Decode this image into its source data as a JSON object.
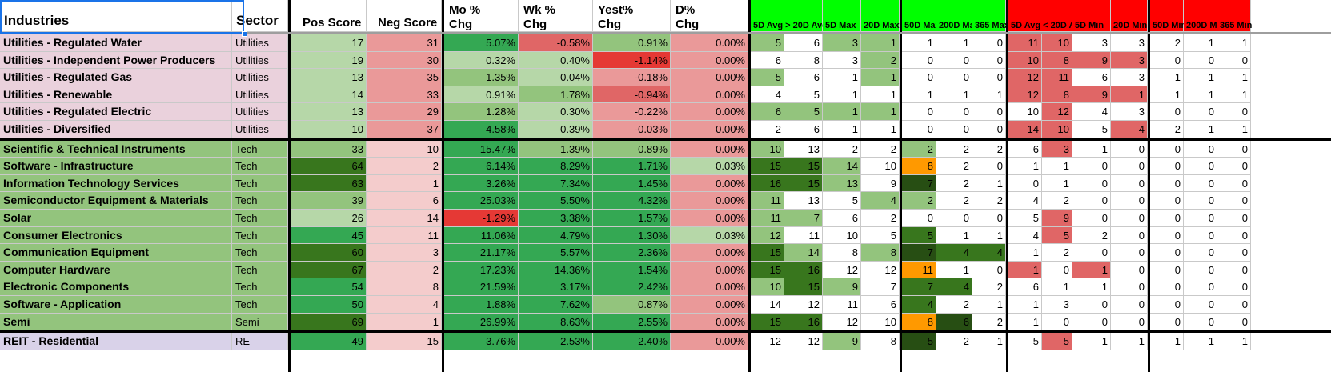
{
  "header": {
    "industries": "Industries",
    "sector": "Sector",
    "pos_score": "Pos Score",
    "neg_score": "Neg Score",
    "mo_chg": [
      "Mo %",
      "Chg"
    ],
    "wk_chg": [
      "Wk %",
      "Chg"
    ],
    "yest_chg": [
      "Yest%",
      "Chg"
    ],
    "d_chg": [
      "D%",
      "Chg"
    ],
    "c5_gt_20": "5D Avg > 20D Avg",
    "c5max": "5D Max",
    "c20max": "20D Max",
    "c50max": "50D Max",
    "c200max": "200D Ma",
    "c365max": "365 Max",
    "c5_lt_20": "5D Avg < 20D Av",
    "c5min": "5D Min",
    "c20min": "20D Min",
    "c50min": "50D Min",
    "c200min": "200D Mi",
    "c365min": "365 Min"
  },
  "colors": {
    "util_row": "#ead1dc",
    "tech_row": "#93c47d",
    "reit_row": "#d9d2e9",
    "max_header": "#00ff00",
    "min_header": "#ff0000",
    "orange": "#ff9900"
  },
  "rows": [
    {
      "industry": "Utilities - Regulated Water",
      "sector": "Utilities",
      "pos": "17",
      "neg": "31",
      "mo": "5.07%",
      "wk": "-0.58%",
      "yest": "0.91%",
      "d": "0.00%",
      "g": [
        "5",
        "6",
        "3",
        "1",
        "1",
        "1",
        "0"
      ],
      "r": [
        "11",
        "10",
        "3",
        "3",
        "2",
        "1",
        "1"
      ]
    },
    {
      "industry": "Utilities - Independent Power Producers",
      "sector": "Utilities",
      "pos": "19",
      "neg": "30",
      "mo": "0.32%",
      "wk": "0.40%",
      "yest": "-1.14%",
      "d": "0.00%",
      "g": [
        "6",
        "8",
        "3",
        "2",
        "0",
        "0",
        "0"
      ],
      "r": [
        "10",
        "8",
        "9",
        "3",
        "0",
        "0",
        "0"
      ]
    },
    {
      "industry": "Utilities - Regulated Gas",
      "sector": "Utilities",
      "pos": "13",
      "neg": "35",
      "mo": "1.35%",
      "wk": "0.04%",
      "yest": "-0.18%",
      "d": "0.00%",
      "g": [
        "5",
        "6",
        "1",
        "1",
        "0",
        "0",
        "0"
      ],
      "r": [
        "12",
        "11",
        "6",
        "3",
        "1",
        "1",
        "1"
      ]
    },
    {
      "industry": "Utilities - Renewable",
      "sector": "Utilities",
      "pos": "14",
      "neg": "33",
      "mo": "0.91%",
      "wk": "1.78%",
      "yest": "-0.94%",
      "d": "0.00%",
      "g": [
        "4",
        "5",
        "1",
        "1",
        "1",
        "1",
        "1"
      ],
      "r": [
        "12",
        "8",
        "9",
        "1",
        "1",
        "1",
        "1"
      ]
    },
    {
      "industry": "Utilities - Regulated Electric",
      "sector": "Utilities",
      "pos": "13",
      "neg": "29",
      "mo": "1.28%",
      "wk": "0.30%",
      "yest": "-0.22%",
      "d": "0.00%",
      "g": [
        "6",
        "5",
        "1",
        "1",
        "0",
        "0",
        "0"
      ],
      "r": [
        "10",
        "12",
        "4",
        "3",
        "0",
        "0",
        "0"
      ]
    },
    {
      "industry": "Utilities - Diversified",
      "sector": "Utilities",
      "pos": "10",
      "neg": "37",
      "mo": "4.58%",
      "wk": "0.39%",
      "yest": "-0.03%",
      "d": "0.00%",
      "g": [
        "2",
        "6",
        "1",
        "1",
        "0",
        "0",
        "0"
      ],
      "r": [
        "14",
        "10",
        "5",
        "4",
        "2",
        "1",
        "1"
      ]
    },
    {
      "industry": "Scientific & Technical Instruments",
      "sector": "Tech",
      "pos": "33",
      "neg": "10",
      "mo": "15.47%",
      "wk": "1.39%",
      "yest": "0.89%",
      "d": "0.00%",
      "g": [
        "10",
        "13",
        "2",
        "2",
        "2",
        "2",
        "2"
      ],
      "r": [
        "6",
        "3",
        "1",
        "0",
        "0",
        "0",
        "0"
      ]
    },
    {
      "industry": "Software - Infrastructure",
      "sector": "Tech",
      "pos": "64",
      "neg": "2",
      "mo": "6.14%",
      "wk": "8.29%",
      "yest": "1.71%",
      "d": "0.03%",
      "g": [
        "15",
        "15",
        "14",
        "10",
        "8",
        "2",
        "0"
      ],
      "r": [
        "1",
        "1",
        "0",
        "0",
        "0",
        "0",
        "0"
      ]
    },
    {
      "industry": "Information Technology Services",
      "sector": "Tech",
      "pos": "63",
      "neg": "1",
      "mo": "3.26%",
      "wk": "7.34%",
      "yest": "1.45%",
      "d": "0.00%",
      "g": [
        "16",
        "15",
        "13",
        "9",
        "7",
        "2",
        "1"
      ],
      "r": [
        "0",
        "1",
        "0",
        "0",
        "0",
        "0",
        "0"
      ]
    },
    {
      "industry": "Semiconductor Equipment & Materials",
      "sector": "Tech",
      "pos": "39",
      "neg": "6",
      "mo": "25.03%",
      "wk": "5.50%",
      "yest": "4.32%",
      "d": "0.00%",
      "g": [
        "11",
        "13",
        "5",
        "4",
        "2",
        "2",
        "2"
      ],
      "r": [
        "4",
        "2",
        "0",
        "0",
        "0",
        "0",
        "0"
      ]
    },
    {
      "industry": "Solar",
      "sector": "Tech",
      "pos": "26",
      "neg": "14",
      "mo": "-1.29%",
      "wk": "3.38%",
      "yest": "1.57%",
      "d": "0.00%",
      "g": [
        "11",
        "7",
        "6",
        "2",
        "0",
        "0",
        "0"
      ],
      "r": [
        "5",
        "9",
        "0",
        "0",
        "0",
        "0",
        "0"
      ]
    },
    {
      "industry": "Consumer Electronics",
      "sector": "Tech",
      "pos": "45",
      "neg": "11",
      "mo": "11.06%",
      "wk": "4.79%",
      "yest": "1.30%",
      "d": "0.03%",
      "g": [
        "12",
        "11",
        "10",
        "5",
        "5",
        "1",
        "1"
      ],
      "r": [
        "4",
        "5",
        "2",
        "0",
        "0",
        "0",
        "0"
      ]
    },
    {
      "industry": "Communication Equipment",
      "sector": "Tech",
      "pos": "60",
      "neg": "3",
      "mo": "21.17%",
      "wk": "5.57%",
      "yest": "2.36%",
      "d": "0.00%",
      "g": [
        "15",
        "14",
        "8",
        "8",
        "7",
        "4",
        "4"
      ],
      "r": [
        "1",
        "2",
        "0",
        "0",
        "0",
        "0",
        "0"
      ]
    },
    {
      "industry": "Computer Hardware",
      "sector": "Tech",
      "pos": "67",
      "neg": "2",
      "mo": "17.23%",
      "wk": "14.36%",
      "yest": "1.54%",
      "d": "0.00%",
      "g": [
        "15",
        "16",
        "12",
        "12",
        "11",
        "1",
        "0"
      ],
      "r": [
        "1",
        "0",
        "1",
        "0",
        "0",
        "0",
        "0"
      ]
    },
    {
      "industry": "Electronic Components",
      "sector": "Tech",
      "pos": "54",
      "neg": "8",
      "mo": "21.59%",
      "wk": "3.17%",
      "yest": "2.42%",
      "d": "0.00%",
      "g": [
        "10",
        "15",
        "9",
        "7",
        "7",
        "4",
        "2"
      ],
      "r": [
        "6",
        "1",
        "1",
        "0",
        "0",
        "0",
        "0"
      ]
    },
    {
      "industry": "Software - Application",
      "sector": "Tech",
      "pos": "50",
      "neg": "4",
      "mo": "1.88%",
      "wk": "7.62%",
      "yest": "0.87%",
      "d": "0.00%",
      "g": [
        "14",
        "12",
        "11",
        "6",
        "4",
        "2",
        "1"
      ],
      "r": [
        "1",
        "3",
        "0",
        "0",
        "0",
        "0",
        "0"
      ]
    },
    {
      "industry": "Semi",
      "sector": "Semi",
      "pos": "69",
      "neg": "1",
      "mo": "26.99%",
      "wk": "8.63%",
      "yest": "2.55%",
      "d": "0.00%",
      "g": [
        "15",
        "16",
        "12",
        "10",
        "8",
        "6",
        "2"
      ],
      "r": [
        "1",
        "0",
        "0",
        "0",
        "0",
        "0",
        "0"
      ]
    },
    {
      "industry": "REIT - Residential",
      "sector": "RE",
      "pos": "49",
      "neg": "15",
      "mo": "3.76%",
      "wk": "2.53%",
      "yest": "2.40%",
      "d": "0.00%",
      "g": [
        "12",
        "12",
        "9",
        "8",
        "5",
        "2",
        "1"
      ],
      "r": [
        "5",
        "5",
        "1",
        "1",
        "1",
        "1",
        "1"
      ]
    }
  ]
}
